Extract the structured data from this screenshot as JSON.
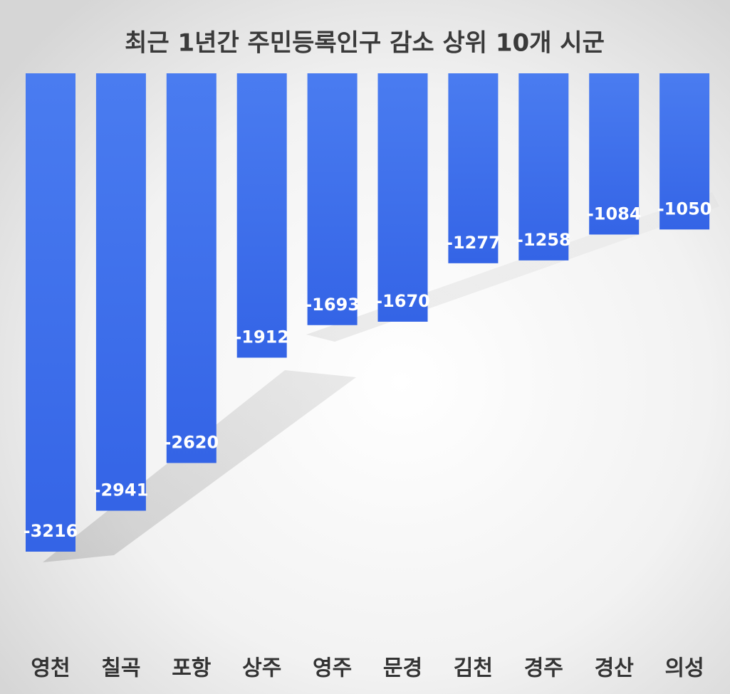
{
  "chart_data": {
    "type": "bar",
    "title": "최근 1년간 주민등록인구 감소 상위 10개 시군",
    "categories": [
      "영천",
      "칠곡",
      "포항",
      "상주",
      "영주",
      "문경",
      "김천",
      "경주",
      "경산",
      "의성"
    ],
    "values": [
      -3216,
      -2941,
      -2620,
      -1912,
      -1693,
      -1670,
      -1277,
      -1258,
      -1084,
      -1050
    ],
    "color": "#3a6df0"
  }
}
